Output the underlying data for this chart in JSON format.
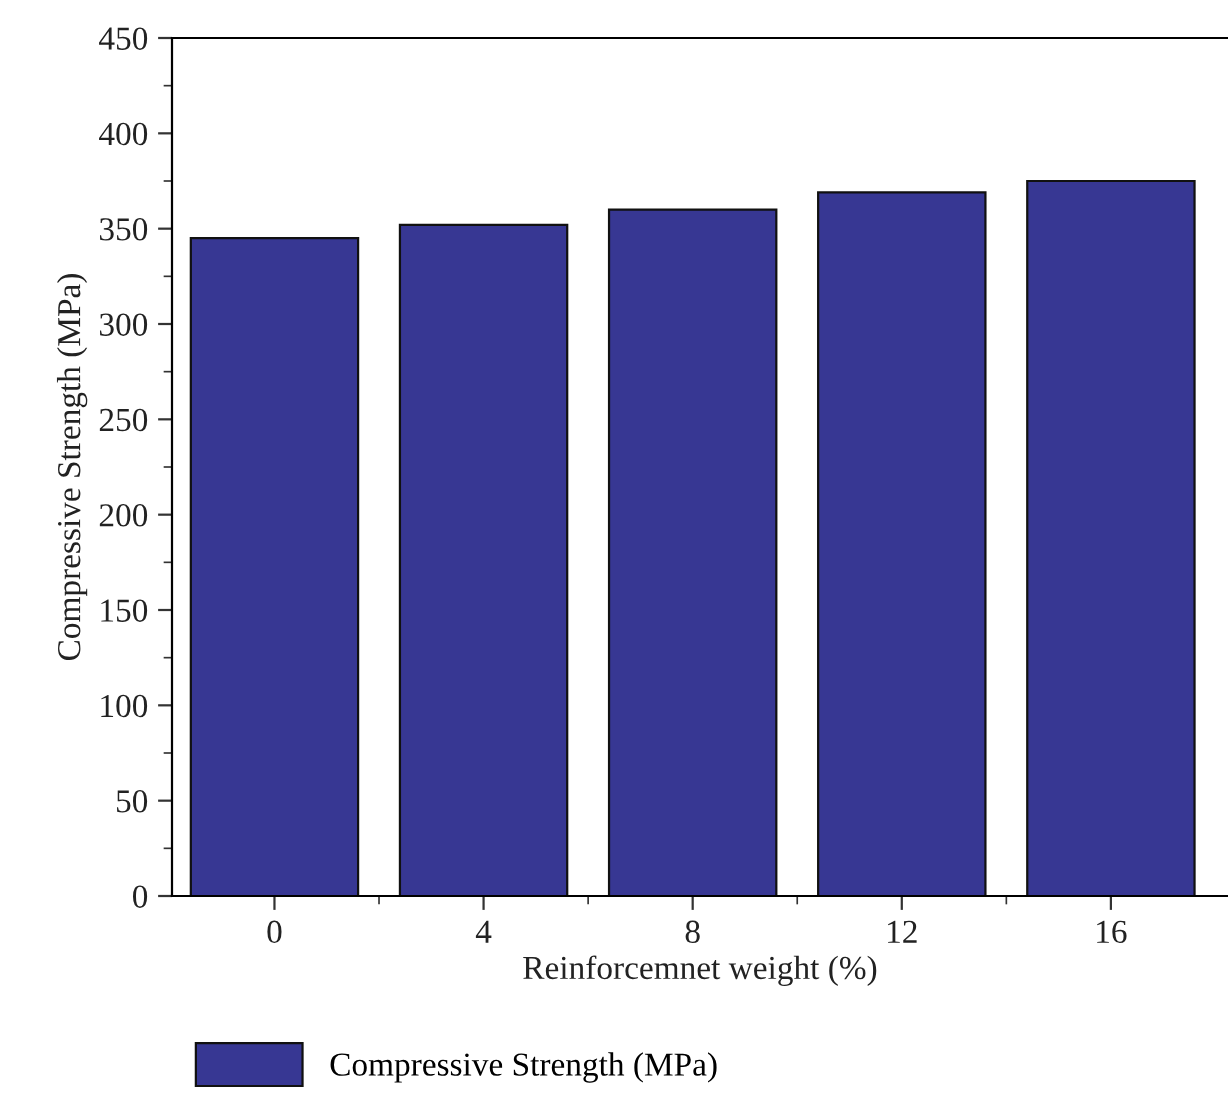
{
  "chart_data": {
    "type": "bar",
    "xlabel": "Reinforcemnet weight (%)",
    "ylabel": "Compressive Strength (MPa)",
    "categories": [
      "0",
      "4",
      "8",
      "12",
      "16"
    ],
    "series": [
      {
        "name": "Compressive Strength (MPa)",
        "color": "#373793",
        "values": [
          345,
          352,
          360,
          369,
          375
        ]
      }
    ],
    "ylim": [
      0,
      450
    ],
    "yticks": [
      0,
      50,
      100,
      150,
      200,
      250,
      300,
      350,
      400,
      450
    ],
    "grid": false,
    "legend": "bottom"
  }
}
